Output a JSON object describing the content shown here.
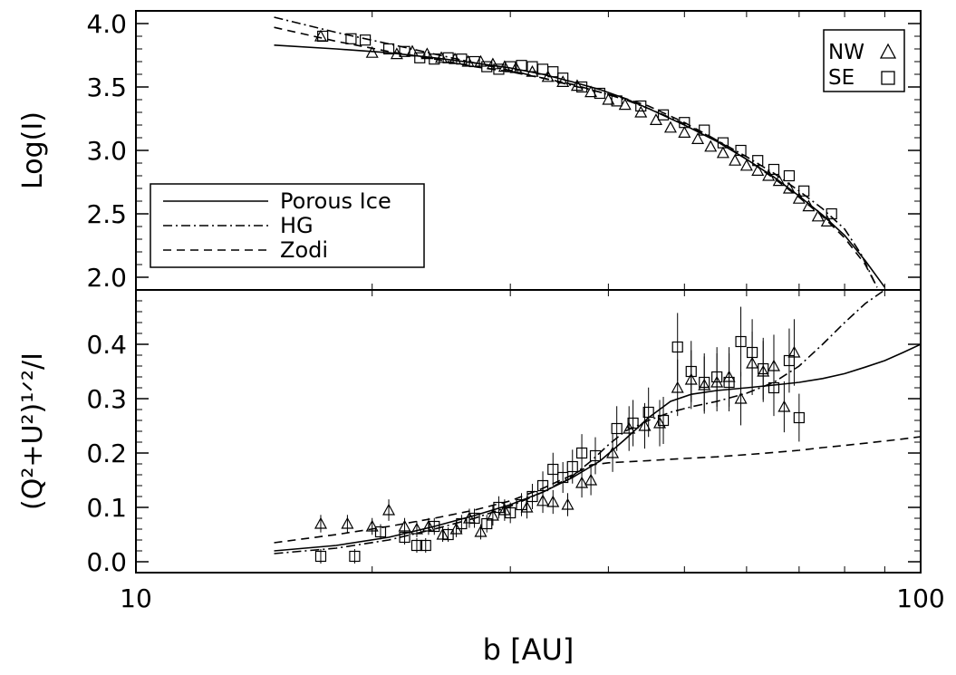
{
  "chart_data": [
    {
      "type": "line",
      "panel": "top",
      "ylabel": "Log(I)",
      "xscale": "log",
      "xlim": [
        10,
        100
      ],
      "ylim": [
        1.9,
        4.1
      ],
      "yticks": [
        2.0,
        2.5,
        3.0,
        3.5,
        4.0
      ],
      "ytick_labels": [
        "2.0",
        "2.5",
        "3.0",
        "3.5",
        "4.0"
      ],
      "legend_lines": {
        "placement": "lower-left",
        "entries": [
          {
            "label": "Porous Ice",
            "style": "solid"
          },
          {
            "label": "HG",
            "style": "dashdot"
          },
          {
            "label": "Zodi",
            "style": "dashed"
          }
        ]
      },
      "legend_markers": {
        "placement": "top-right",
        "entries": [
          {
            "label": "NW",
            "marker": "triangle"
          },
          {
            "label": "SE",
            "marker": "square"
          }
        ]
      },
      "series": [
        {
          "name": "Porous Ice",
          "style": "solid",
          "x": [
            15,
            18,
            21,
            24,
            27,
            30,
            33,
            36,
            39,
            42,
            45,
            50,
            55,
            60,
            65,
            70,
            75,
            80,
            85,
            90
          ],
          "y": [
            3.83,
            3.8,
            3.77,
            3.73,
            3.69,
            3.65,
            3.6,
            3.54,
            3.48,
            3.41,
            3.33,
            3.2,
            3.07,
            2.93,
            2.79,
            2.64,
            2.49,
            2.33,
            2.13,
            1.92
          ]
        },
        {
          "name": "HG",
          "style": "dashdot",
          "x": [
            15,
            18,
            21,
            24,
            27,
            30,
            33,
            36,
            39,
            42,
            45,
            50,
            55,
            60,
            65,
            70,
            75,
            80,
            84,
            88
          ],
          "y": [
            4.05,
            3.93,
            3.84,
            3.76,
            3.69,
            3.63,
            3.57,
            3.51,
            3.46,
            3.4,
            3.33,
            3.21,
            3.08,
            2.95,
            2.82,
            2.68,
            2.54,
            2.38,
            2.18,
            1.92
          ]
        },
        {
          "name": "Zodi",
          "style": "dashed",
          "x": [
            15,
            18,
            21,
            24,
            27,
            30,
            33,
            36,
            39,
            42,
            45,
            50,
            55,
            60,
            65,
            70,
            75,
            80,
            85,
            88
          ],
          "y": [
            3.97,
            3.86,
            3.78,
            3.72,
            3.66,
            3.62,
            3.57,
            3.52,
            3.46,
            3.41,
            3.35,
            3.22,
            3.08,
            2.93,
            2.78,
            2.63,
            2.48,
            2.31,
            2.1,
            1.92
          ]
        }
      ],
      "points": {
        "NW": {
          "x": [
            17.2,
            20.0,
            21.5,
            22.5,
            23.5,
            24.5,
            25.5,
            26.5,
            27.5,
            28.5,
            29.5,
            30.5,
            32,
            33.5,
            35,
            36.5,
            38,
            40,
            42,
            44,
            46,
            48,
            50,
            52,
            54,
            56,
            58,
            60,
            62,
            64,
            66,
            68,
            70,
            72,
            74,
            76
          ],
          "y": [
            3.9,
            3.77,
            3.76,
            3.78,
            3.76,
            3.73,
            3.72,
            3.7,
            3.7,
            3.68,
            3.66,
            3.65,
            3.62,
            3.58,
            3.54,
            3.51,
            3.46,
            3.4,
            3.36,
            3.3,
            3.24,
            3.18,
            3.14,
            3.09,
            3.03,
            2.98,
            2.92,
            2.88,
            2.84,
            2.8,
            2.76,
            2.7,
            2.62,
            2.56,
            2.48,
            2.44
          ]
        },
        "SE": {
          "x": [
            17.3,
            18.8,
            19.6,
            21.0,
            22.0,
            23.0,
            24.0,
            25.0,
            26.0,
            27.0,
            28.0,
            29.0,
            30.0,
            31.0,
            32.0,
            33.0,
            34.0,
            35.0,
            37.0,
            39.0,
            41.0,
            44.0,
            47.0,
            50.0,
            53.0,
            56.0,
            59.0,
            62.0,
            65.0,
            68.0,
            71.0,
            77.0
          ],
          "y": [
            3.9,
            3.88,
            3.87,
            3.8,
            3.78,
            3.73,
            3.72,
            3.73,
            3.72,
            3.7,
            3.66,
            3.64,
            3.66,
            3.67,
            3.66,
            3.64,
            3.62,
            3.57,
            3.5,
            3.45,
            3.39,
            3.35,
            3.28,
            3.22,
            3.16,
            3.06,
            3.0,
            2.92,
            2.85,
            2.8,
            2.68,
            2.5
          ]
        }
      }
    },
    {
      "type": "line",
      "panel": "bottom",
      "ylabel": "(Q²+U²)¹ᐟ²/I",
      "xlabel": "b [AU]",
      "xscale": "log",
      "xlim": [
        10,
        100
      ],
      "ylim": [
        -0.02,
        0.5
      ],
      "yticks": [
        0.0,
        0.1,
        0.2,
        0.3,
        0.4
      ],
      "ytick_labels": [
        "0.0",
        "0.1",
        "0.2",
        "0.3",
        "0.4"
      ],
      "xticks": [
        10,
        100
      ],
      "xtick_labels": [
        "10",
        "100"
      ],
      "series": [
        {
          "name": "Porous Ice",
          "style": "solid",
          "x": [
            15,
            18,
            21,
            24,
            27,
            30,
            33,
            36,
            39,
            42,
            45,
            48,
            51,
            55,
            60,
            65,
            70,
            75,
            80,
            85,
            90,
            95,
            100
          ],
          "y": [
            0.02,
            0.03,
            0.045,
            0.065,
            0.085,
            0.105,
            0.128,
            0.155,
            0.185,
            0.225,
            0.265,
            0.295,
            0.308,
            0.315,
            0.32,
            0.325,
            0.33,
            0.337,
            0.346,
            0.358,
            0.37,
            0.385,
            0.4
          ]
        },
        {
          "name": "HG",
          "style": "dashdot",
          "x": [
            15,
            18,
            21,
            24,
            27,
            30,
            33,
            36,
            38,
            40,
            42,
            45,
            48,
            51,
            55,
            60,
            65,
            70,
            75,
            80,
            85,
            90
          ],
          "y": [
            0.015,
            0.025,
            0.04,
            0.06,
            0.08,
            0.102,
            0.128,
            0.158,
            0.185,
            0.215,
            0.24,
            0.26,
            0.275,
            0.285,
            0.295,
            0.31,
            0.33,
            0.36,
            0.4,
            0.44,
            0.475,
            0.5
          ]
        },
        {
          "name": "Zodi",
          "style": "dashed",
          "x": [
            15,
            18,
            21,
            24,
            27,
            30,
            33,
            36,
            38,
            40,
            45,
            50,
            55,
            60,
            65,
            70,
            75,
            80,
            85,
            90,
            95,
            100
          ],
          "y": [
            0.035,
            0.05,
            0.065,
            0.08,
            0.095,
            0.112,
            0.135,
            0.16,
            0.178,
            0.182,
            0.186,
            0.19,
            0.193,
            0.197,
            0.201,
            0.205,
            0.21,
            0.214,
            0.218,
            0.222,
            0.226,
            0.23
          ]
        }
      ],
      "points": {
        "NW": {
          "x": [
            17.2,
            18.6,
            20.0,
            21.0,
            22.0,
            22.8,
            23.6,
            24.6,
            25.6,
            26.6,
            27.5,
            28.5,
            29.5,
            31.5,
            33.0,
            34.0,
            35.5,
            37.0,
            38.0,
            40.5,
            42.5,
            44.5,
            46.5,
            49.0,
            51.0,
            53.0,
            55.0,
            57.0,
            59.0,
            61.0,
            63.0,
            65.0,
            67.0,
            69.0
          ],
          "y": [
            0.07,
            0.07,
            0.065,
            0.095,
            0.065,
            0.06,
            0.065,
            0.05,
            0.06,
            0.08,
            0.055,
            0.085,
            0.095,
            0.1,
            0.112,
            0.11,
            0.105,
            0.145,
            0.15,
            0.2,
            0.245,
            0.25,
            0.255,
            0.32,
            0.335,
            0.325,
            0.33,
            0.34,
            0.3,
            0.365,
            0.35,
            0.36,
            0.285,
            0.385
          ]
        },
        "SE": {
          "x": [
            17.2,
            19.0,
            20.5,
            22.0,
            22.8,
            23.4,
            24.0,
            25.0,
            26.0,
            27.0,
            28.0,
            29.0,
            30.0,
            31.0,
            32.0,
            33.0,
            34.0,
            35.0,
            36.0,
            37.0,
            38.5,
            41.0,
            43.0,
            45.0,
            47.0,
            49.0,
            51.0,
            53.0,
            55.0,
            57.0,
            59.0,
            61.0,
            63.0,
            65.0,
            68.0,
            70.0
          ],
          "y": [
            0.01,
            0.01,
            0.055,
            0.045,
            0.03,
            0.03,
            0.065,
            0.05,
            0.07,
            0.08,
            0.07,
            0.1,
            0.09,
            0.105,
            0.12,
            0.14,
            0.17,
            0.155,
            0.175,
            0.2,
            0.195,
            0.245,
            0.255,
            0.275,
            0.26,
            0.395,
            0.35,
            0.33,
            0.34,
            0.33,
            0.405,
            0.385,
            0.355,
            0.32,
            0.37,
            0.265
          ]
        }
      }
    }
  ]
}
